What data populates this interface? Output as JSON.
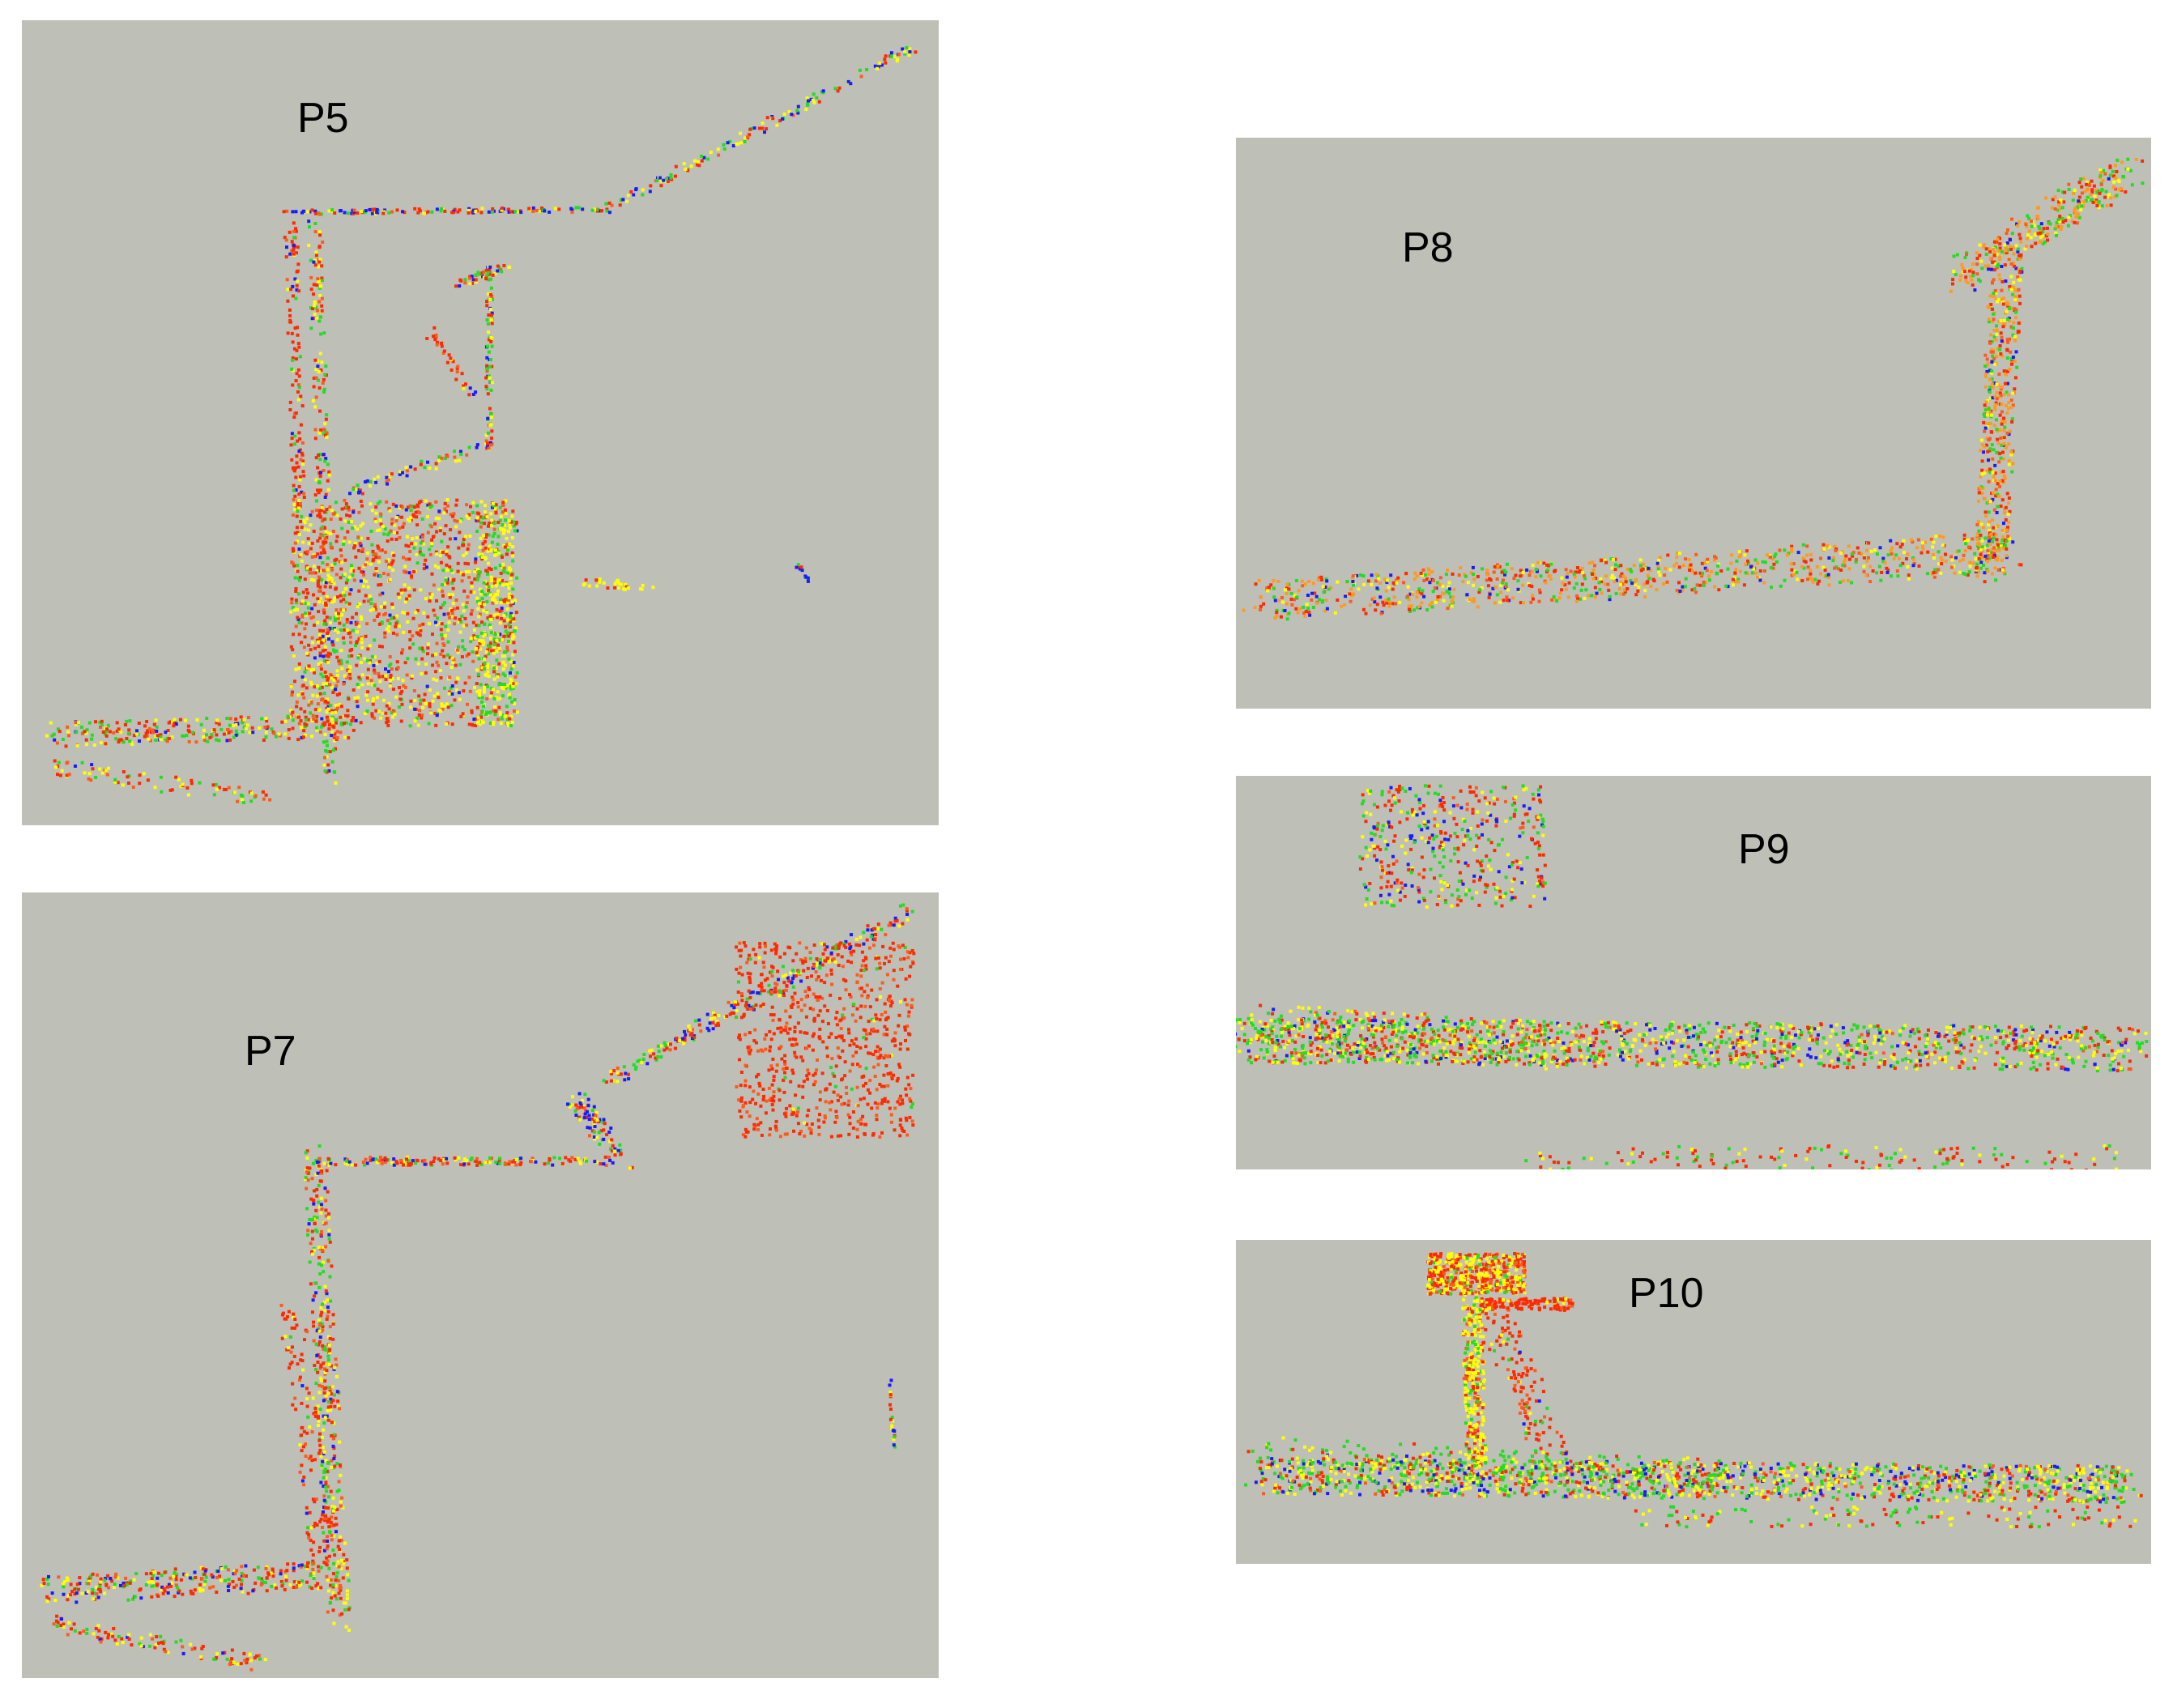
{
  "panels": [
    {
      "id": "p5",
      "label": "P5"
    },
    {
      "id": "p7",
      "label": "P7"
    },
    {
      "id": "p8",
      "label": "P8"
    },
    {
      "id": "p9",
      "label": "P9"
    },
    {
      "id": "p10",
      "label": "P10"
    }
  ],
  "colors": {
    "background": "#bec0b8",
    "points": [
      "#ff2a00",
      "#ff5a1e",
      "#ffff00",
      "#22dd22",
      "#1a1aff",
      "#ff9a20"
    ]
  }
}
